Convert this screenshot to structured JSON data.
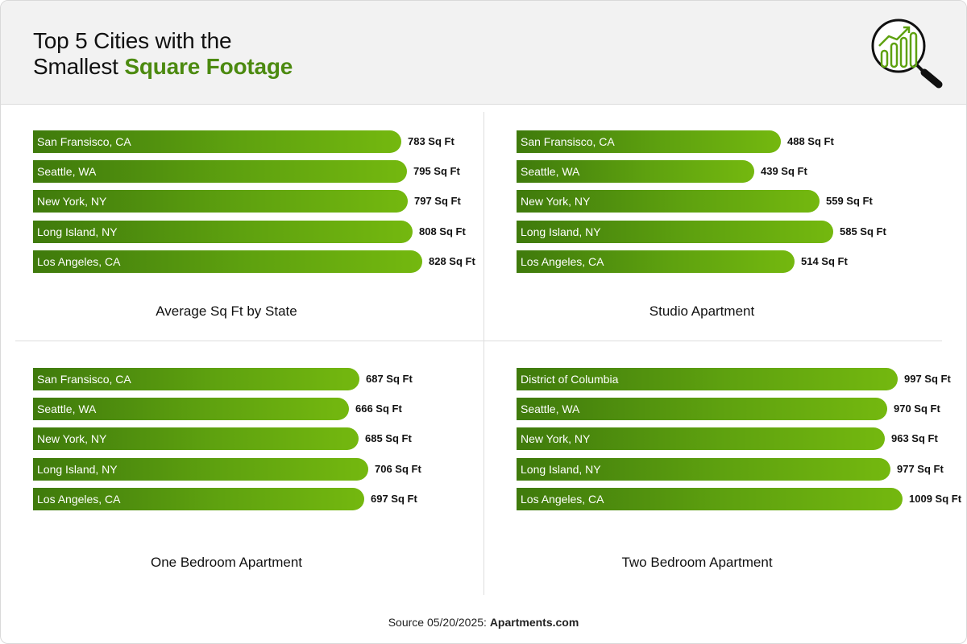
{
  "header": {
    "title_line1": "Top 5 Cities with the",
    "title_line2_plain": "Smallest ",
    "title_line2_accent": "Square Footage",
    "accent_color": "#4c8a10",
    "logo_icon": "chart-magnifier-icon"
  },
  "footer": {
    "source_prefix": "Source 05/20/2025: ",
    "source_name": "Apartments.com"
  },
  "colors": {
    "bar_start": "#3f7a0c",
    "bar_end": "#74b80f"
  },
  "chart_data": [
    {
      "type": "bar",
      "title": "Average Sq Ft by State",
      "unit": "Sq Ft",
      "categories": [
        "San Fransisco, CA",
        "Seattle, WA",
        "New York, NY",
        "Long Island, NY",
        "Los Angeles, CA"
      ],
      "values": [
        783,
        795,
        797,
        808,
        828
      ],
      "value_labels": [
        "783 Sq Ft",
        "795 Sq Ft",
        "797 Sq Ft",
        "808 Sq Ft",
        "828 Sq Ft"
      ]
    },
    {
      "type": "bar",
      "title": "Studio Apartment",
      "unit": "Sq Ft",
      "categories": [
        "San Fransisco, CA",
        "Seattle, WA",
        "New York, NY",
        "Long Island, NY",
        "Los Angeles, CA"
      ],
      "values": [
        488,
        439,
        559,
        585,
        514
      ],
      "value_labels": [
        "488 Sq Ft",
        "439 Sq Ft",
        "559 Sq Ft",
        "585 Sq Ft",
        "514 Sq Ft"
      ]
    },
    {
      "type": "bar",
      "title": "One Bedroom Apartment",
      "unit": "Sq Ft",
      "categories": [
        "San Fransisco, CA",
        "Seattle, WA",
        "New York, NY",
        "Long Island, NY",
        "Los Angeles, CA"
      ],
      "values": [
        687,
        666,
        685,
        706,
        697
      ],
      "value_labels": [
        "687 Sq Ft",
        "666 Sq Ft",
        "685 Sq Ft",
        "706 Sq Ft",
        "697 Sq Ft"
      ]
    },
    {
      "type": "bar",
      "title": "Two Bedroom Apartment",
      "unit": "Sq Ft",
      "categories": [
        "District of Columbia",
        "Seattle, WA",
        "New York, NY",
        "Long Island, NY",
        "Los Angeles, CA"
      ],
      "values": [
        997,
        970,
        963,
        977,
        1009
      ],
      "value_labels": [
        "997 Sq Ft",
        "970 Sq Ft",
        "963 Sq Ft",
        "977 Sq Ft",
        "1009 Sq Ft"
      ]
    }
  ]
}
